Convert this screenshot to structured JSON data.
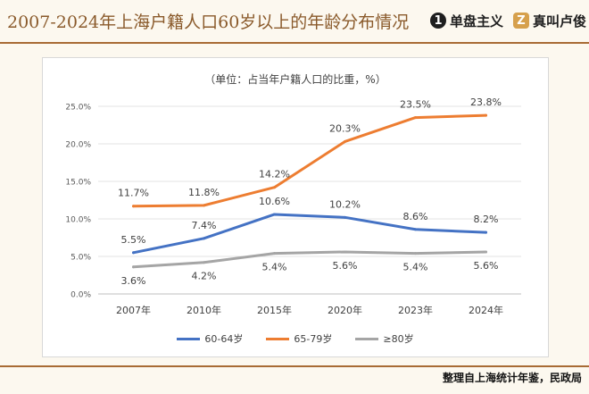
{
  "header": {
    "title": "2007-2024年上海户籍人口60岁以上的年龄分布情况",
    "brand1": {
      "badge": "1",
      "label": "单盘主义"
    },
    "brand2": {
      "badge": "Z",
      "label": "真叫卢俊"
    }
  },
  "source": "整理自上海统计年鉴，民政局",
  "chart_data": {
    "type": "line",
    "title": "（单位：占当年户籍人口的比重，%）",
    "categories": [
      "2007年",
      "2010年",
      "2015年",
      "2020年",
      "2023年",
      "2024年"
    ],
    "ylim": [
      0,
      25
    ],
    "yticks": [
      0,
      5,
      10,
      15,
      20,
      25
    ],
    "ytick_labels": [
      "0.0%",
      "5.0%",
      "10.0%",
      "15.0%",
      "20.0%",
      "25.0%"
    ],
    "grid": true,
    "legend_position": "bottom",
    "series": [
      {
        "name": "60-64岁",
        "color": "#4472c4",
        "values": [
          5.5,
          7.4,
          10.6,
          10.2,
          8.6,
          8.2
        ],
        "labels": [
          "5.5%",
          "7.4%",
          "10.6%",
          "10.2%",
          "8.6%",
          "8.2%"
        ]
      },
      {
        "name": "65-79岁",
        "color": "#ed7d31",
        "values": [
          11.7,
          11.8,
          14.2,
          20.3,
          23.5,
          23.8
        ],
        "labels": [
          "11.7%",
          "11.8%",
          "14.2%",
          "20.3%",
          "23.5%",
          "23.8%"
        ]
      },
      {
        "name": "≥80岁",
        "color": "#a5a5a5",
        "values": [
          3.6,
          4.2,
          5.4,
          5.6,
          5.4,
          5.6
        ],
        "labels": [
          "3.6%",
          "4.2%",
          "5.4%",
          "5.6%",
          "5.4%",
          "5.6%"
        ]
      }
    ]
  }
}
